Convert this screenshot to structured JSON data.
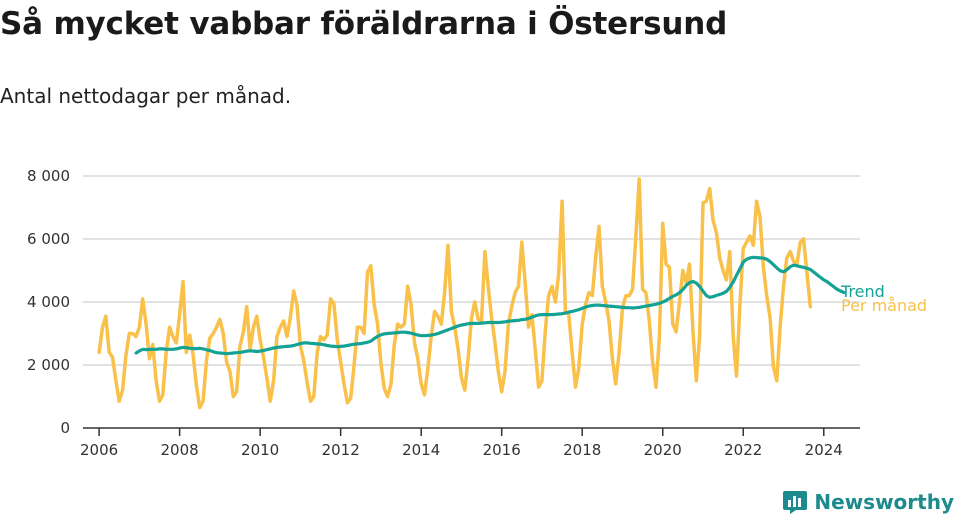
{
  "title": "Så mycket vabbar föräldrarna i Östersund",
  "subtitle": "Antal nettodagar per månad.",
  "brand": {
    "name": "Newsworthy",
    "icon": "newsworthy-logo-icon",
    "color": "#1d8a8d"
  },
  "chart_data": {
    "type": "line",
    "ylim": [
      0,
      8000
    ],
    "xlim": [
      2005.6,
      2024.9
    ],
    "y_ticks": [
      0,
      2000,
      4000,
      6000,
      8000
    ],
    "y_tick_labels": [
      "0",
      "2 000",
      "4 000",
      "6 000",
      "8 000"
    ],
    "x_ticks": [
      2006,
      2008,
      2010,
      2012,
      2014,
      2016,
      2018,
      2020,
      2022,
      2024
    ],
    "x_tick_labels": [
      "2006",
      "2008",
      "2010",
      "2012",
      "2014",
      "2016",
      "2018",
      "2020",
      "2022",
      "2024"
    ],
    "grid": true,
    "series": [
      {
        "name": "Per månad",
        "color": "#f9c04a",
        "start": 2006.0,
        "step": 0.08333,
        "values": [
          2400,
          3200,
          3550,
          2400,
          2250,
          1500,
          850,
          1200,
          2300,
          3000,
          3000,
          2900,
          3200,
          4100,
          3300,
          2200,
          2650,
          1500,
          850,
          1050,
          2400,
          3200,
          2900,
          2700,
          3600,
          4650,
          2400,
          2950,
          2350,
          1350,
          650,
          850,
          2150,
          2850,
          3000,
          3200,
          3450,
          3000,
          2100,
          1800,
          1000,
          1150,
          2600,
          3050,
          3850,
          2500,
          3200,
          3550,
          2800,
          2250,
          1600,
          850,
          1500,
          2900,
          3200,
          3400,
          2900,
          3500,
          4350,
          3900,
          2600,
          2150,
          1450,
          850,
          1000,
          2400,
          2900,
          2800,
          2950,
          4100,
          3950,
          2800,
          2100,
          1400,
          800,
          950,
          2000,
          3200,
          3200,
          3000,
          4950,
          5150,
          3900,
          3300,
          2050,
          1250,
          1000,
          1400,
          2650,
          3300,
          3200,
          3300,
          4500,
          3900,
          2700,
          2200,
          1400,
          1050,
          1900,
          2900,
          3700,
          3550,
          3300,
          4300,
          5800,
          3700,
          3200,
          2500,
          1600,
          1200,
          2200,
          3500,
          4000,
          3450,
          3400,
          5600,
          4450,
          3500,
          2700,
          1800,
          1150,
          1800,
          3300,
          3850,
          4300,
          4500,
          5900,
          4600,
          3200,
          3600,
          2500,
          1300,
          1500,
          3100,
          4200,
          4500,
          4000,
          4900,
          7200,
          3700,
          3600,
          2400,
          1300,
          1900,
          3300,
          3900,
          4300,
          4200,
          5400,
          6400,
          4500,
          4000,
          3400,
          2200,
          1400,
          2400,
          3800,
          4200,
          4200,
          4400,
          6100,
          7900,
          4400,
          4300,
          3400,
          2100,
          1300,
          2900,
          6500,
          5200,
          5100,
          3300,
          3050,
          4000,
          5000,
          4600,
          5200,
          3100,
          1500,
          2900,
          7150,
          7200,
          7600,
          6600,
          6200,
          5400,
          5000,
          4700,
          5600,
          2900,
          1650,
          3900,
          5700,
          5900,
          6100,
          5800,
          7200,
          6700,
          5100,
          4200,
          3500,
          1950,
          1500,
          3200,
          4500,
          5400,
          5600,
          5300,
          5200,
          5900,
          6000,
          4900,
          3850
        ]
      },
      {
        "name": "Trend",
        "color": "#14a294",
        "start": 2006.92,
        "step": 0.08333,
        "values": [
          2380,
          2450,
          2500,
          2490,
          2500,
          2500,
          2500,
          2510,
          2510,
          2500,
          2500,
          2500,
          2510,
          2540,
          2560,
          2550,
          2530,
          2520,
          2520,
          2530,
          2510,
          2480,
          2460,
          2420,
          2390,
          2380,
          2370,
          2360,
          2370,
          2380,
          2390,
          2400,
          2420,
          2440,
          2450,
          2440,
          2430,
          2440,
          2460,
          2490,
          2510,
          2540,
          2560,
          2570,
          2580,
          2590,
          2600,
          2620,
          2650,
          2680,
          2700,
          2700,
          2690,
          2680,
          2670,
          2660,
          2640,
          2620,
          2600,
          2590,
          2580,
          2590,
          2600,
          2620,
          2640,
          2660,
          2670,
          2680,
          2700,
          2720,
          2760,
          2840,
          2910,
          2960,
          2990,
          3000,
          3010,
          3020,
          3030,
          3040,
          3040,
          3030,
          3010,
          2980,
          2950,
          2930,
          2930,
          2940,
          2950,
          2970,
          3000,
          3040,
          3080,
          3120,
          3160,
          3200,
          3240,
          3270,
          3290,
          3310,
          3320,
          3320,
          3320,
          3330,
          3340,
          3350,
          3350,
          3350,
          3350,
          3360,
          3370,
          3390,
          3400,
          3410,
          3420,
          3440,
          3450,
          3480,
          3520,
          3560,
          3590,
          3600,
          3600,
          3600,
          3600,
          3610,
          3620,
          3630,
          3650,
          3680,
          3700,
          3730,
          3760,
          3800,
          3840,
          3870,
          3890,
          3900,
          3900,
          3890,
          3880,
          3870,
          3860,
          3850,
          3840,
          3830,
          3820,
          3820,
          3810,
          3820,
          3830,
          3850,
          3870,
          3890,
          3910,
          3930,
          3960,
          4000,
          4050,
          4120,
          4180,
          4230,
          4300,
          4400,
          4530,
          4620,
          4650,
          4600,
          4490,
          4340,
          4200,
          4150,
          4170,
          4210,
          4240,
          4280,
          4340,
          4470,
          4640,
          4850,
          5060,
          5270,
          5360,
          5400,
          5420,
          5410,
          5400,
          5390,
          5360,
          5280,
          5180,
          5080,
          4990,
          4960,
          5030,
          5120,
          5170,
          5150,
          5120,
          5100,
          5070,
          5030,
          4950,
          4860,
          4780,
          4700,
          4640,
          4560,
          4480,
          4400,
          4350,
          4300
        ]
      }
    ]
  }
}
